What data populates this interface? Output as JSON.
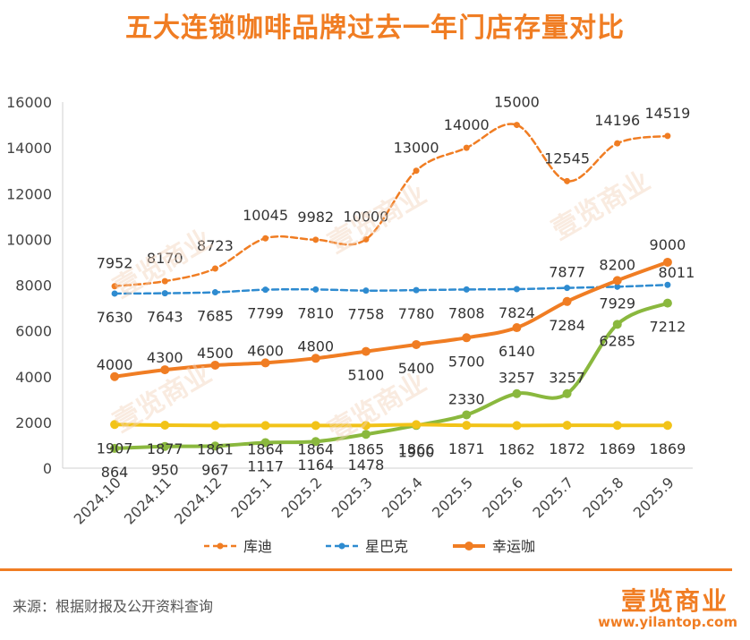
{
  "title": "五大连锁咖啡品牌过去一年门店存量对比",
  "source": "来源：根据财报及公开资料查询",
  "brand": "壹览商业",
  "website": "www.yilantop.com",
  "watermark": "壹览商业",
  "chart_data": {
    "type": "line",
    "categories": [
      "2024.10",
      "2024.11",
      "2024.12",
      "2025.1",
      "2025.2",
      "2025.3",
      "2025.4",
      "2025.5",
      "2025.6",
      "2025.7",
      "2025.8",
      "2025.9"
    ],
    "ylim": [
      0,
      16000
    ],
    "yticks": [
      0,
      2000,
      4000,
      6000,
      8000,
      10000,
      12000,
      14000,
      16000
    ],
    "legend_position": "bottom",
    "series": [
      {
        "name": "库迪",
        "color": "#f07d23",
        "style": "dashed",
        "values": [
          7952,
          8170,
          8723,
          10045,
          9982,
          10000,
          13000,
          14000,
          15000,
          12545,
          14196,
          14519
        ]
      },
      {
        "name": "星巴克",
        "color": "#2e8bd0",
        "style": "dashed",
        "values": [
          7630,
          7643,
          7685,
          7799,
          7810,
          7758,
          7780,
          7808,
          7824,
          7877,
          7929,
          8011
        ]
      },
      {
        "name": "幸运咖",
        "color": "#f07d23",
        "style": "solid",
        "values": [
          4000,
          4300,
          4500,
          4600,
          4800,
          5100,
          5400,
          5700,
          6140,
          7284,
          8200,
          9000
        ]
      },
      {
        "name": "",
        "color": "#8ab83e",
        "style": "solid",
        "legend": false,
        "values": [
          864,
          950,
          967,
          1117,
          1164,
          1478,
          1866,
          2330,
          3257,
          3257,
          6285,
          7212
        ]
      },
      {
        "name": "",
        "color": "#f2c318",
        "style": "solid",
        "legend": false,
        "values": [
          1907,
          1877,
          1861,
          1864,
          1864,
          1865,
          1900,
          1871,
          1862,
          1872,
          1869,
          1869
        ]
      }
    ]
  }
}
